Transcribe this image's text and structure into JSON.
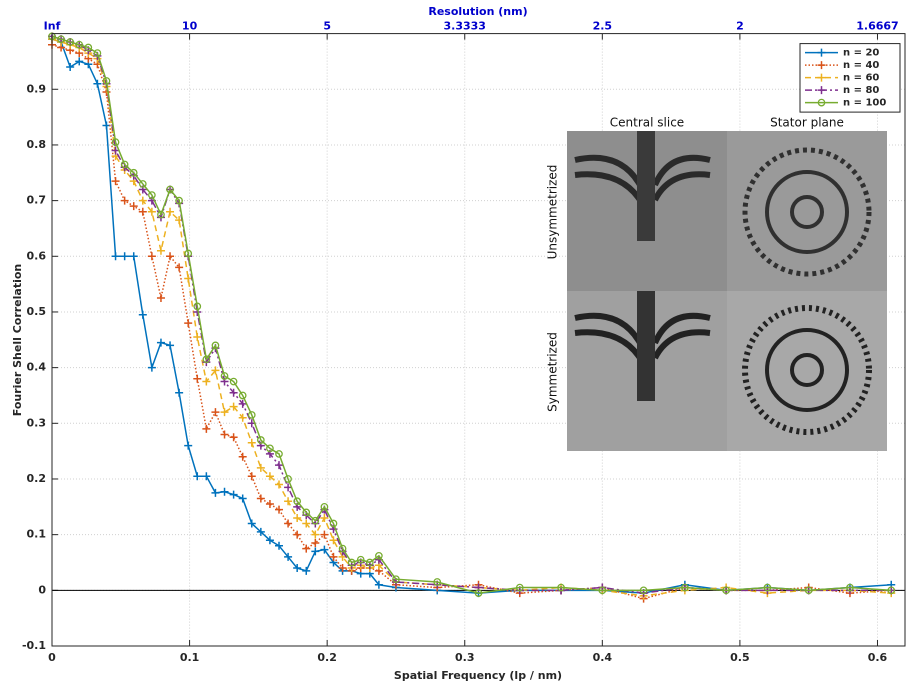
{
  "chart_data": {
    "type": "line",
    "xlabel": "Spatial Frequency (lp / nm)",
    "ylabel": "Fourier Shell Correlation",
    "x2label": "Resolution (nm)",
    "xlim": [
      0,
      0.62
    ],
    "ylim": [
      -0.1,
      1
    ],
    "xticks": [
      0,
      0.1,
      0.2,
      0.3,
      0.4,
      0.5,
      0.6
    ],
    "yticks": [
      -0.1,
      0,
      0.1,
      0.2,
      0.3,
      0.4,
      0.5,
      0.6,
      0.7,
      0.8,
      0.9
    ],
    "x2ticks": [
      {
        "value": 0,
        "label": "Inf"
      },
      {
        "value": 0.1,
        "label": "10"
      },
      {
        "value": 0.2,
        "label": "5"
      },
      {
        "value": 0.3,
        "label": "3.3333"
      },
      {
        "value": 0.4,
        "label": "2.5"
      },
      {
        "value": 0.5,
        "label": "2"
      },
      {
        "value": 0.6,
        "label": "1.6667"
      }
    ],
    "grid": true,
    "legend": "upper right",
    "x": [
      0,
      0.0066,
      0.0132,
      0.0198,
      0.0264,
      0.033,
      0.0396,
      0.0462,
      0.0528,
      0.0594,
      0.066,
      0.0726,
      0.0792,
      0.0858,
      0.0924,
      0.099,
      0.1056,
      0.1122,
      0.1188,
      0.1254,
      0.132,
      0.1386,
      0.1452,
      0.1518,
      0.1584,
      0.165,
      0.1716,
      0.1782,
      0.1848,
      0.1914,
      0.198,
      0.2046,
      0.2112,
      0.2178,
      0.2244,
      0.231,
      0.2376,
      0.25,
      0.28,
      0.31,
      0.34,
      0.37,
      0.4,
      0.43,
      0.46,
      0.49,
      0.52,
      0.55,
      0.58,
      0.61
    ],
    "series": [
      {
        "name": "n = 20",
        "color": "#0072BD",
        "linestyle": "solid",
        "marker": "plus",
        "values": [
          0.99,
          0.985,
          0.94,
          0.95,
          0.945,
          0.91,
          0.835,
          0.6,
          0.6,
          0.6,
          0.495,
          0.4,
          0.445,
          0.44,
          0.355,
          0.26,
          0.205,
          0.205,
          0.175,
          0.177,
          0.172,
          0.165,
          0.12,
          0.105,
          0.09,
          0.08,
          0.06,
          0.04,
          0.035,
          0.07,
          0.073,
          0.05,
          0.035,
          0.035,
          0.03,
          0.03,
          0.01,
          0.005,
          0,
          -0.005,
          0,
          0,
          0,
          -0.005,
          0.01,
          0,
          0.005,
          0,
          0.005,
          0.01
        ]
      },
      {
        "name": "n = 40",
        "color": "#D95319",
        "linestyle": "dotted",
        "marker": "plus",
        "values": [
          0.98,
          0.975,
          0.97,
          0.965,
          0.955,
          0.945,
          0.895,
          0.735,
          0.7,
          0.69,
          0.68,
          0.6,
          0.525,
          0.6,
          0.58,
          0.48,
          0.38,
          0.29,
          0.32,
          0.28,
          0.275,
          0.24,
          0.205,
          0.165,
          0.155,
          0.145,
          0.12,
          0.1,
          0.075,
          0.085,
          0.1,
          0.06,
          0.04,
          0.035,
          0.04,
          0.04,
          0.035,
          0.01,
          0.005,
          0.01,
          -0.005,
          0,
          0.005,
          -0.015,
          0.005,
          0,
          0,
          0.005,
          -0.005,
          0
        ]
      },
      {
        "name": "n = 60",
        "color": "#EDB120",
        "linestyle": "dashed",
        "marker": "plus",
        "values": [
          0.99,
          0.985,
          0.98,
          0.975,
          0.965,
          0.955,
          0.905,
          0.78,
          0.755,
          0.735,
          0.7,
          0.68,
          0.61,
          0.68,
          0.665,
          0.56,
          0.455,
          0.375,
          0.395,
          0.32,
          0.33,
          0.31,
          0.265,
          0.22,
          0.205,
          0.19,
          0.16,
          0.13,
          0.12,
          0.1,
          0.13,
          0.09,
          0.06,
          0.04,
          0.045,
          0.04,
          0.045,
          0.015,
          0.01,
          0.005,
          0,
          0.005,
          0,
          -0.01,
          0,
          0.005,
          -0.005,
          0,
          0,
          -0.005
        ]
      },
      {
        "name": "n = 80",
        "color": "#7E2F8E",
        "linestyle": "dashdot",
        "marker": "plus",
        "values": [
          0.995,
          0.99,
          0.985,
          0.98,
          0.97,
          0.96,
          0.91,
          0.79,
          0.76,
          0.745,
          0.72,
          0.7,
          0.67,
          0.72,
          0.695,
          0.6,
          0.5,
          0.41,
          0.435,
          0.375,
          0.355,
          0.335,
          0.3,
          0.26,
          0.245,
          0.225,
          0.185,
          0.15,
          0.135,
          0.12,
          0.145,
          0.11,
          0.07,
          0.045,
          0.05,
          0.045,
          0.055,
          0.015,
          0.01,
          0.005,
          0,
          0,
          0.005,
          -0.005,
          0.005,
          0,
          0,
          0,
          0,
          0
        ]
      },
      {
        "name": "n = 100",
        "color": "#77AC30",
        "linestyle": "solid",
        "marker": "circle",
        "values": [
          0.995,
          0.99,
          0.985,
          0.98,
          0.975,
          0.965,
          0.915,
          0.805,
          0.765,
          0.75,
          0.73,
          0.71,
          0.675,
          0.72,
          0.7,
          0.605,
          0.51,
          0.415,
          0.44,
          0.385,
          0.375,
          0.35,
          0.315,
          0.27,
          0.255,
          0.245,
          0.2,
          0.16,
          0.14,
          0.125,
          0.15,
          0.12,
          0.075,
          0.05,
          0.055,
          0.05,
          0.062,
          0.02,
          0.015,
          -0.005,
          0.005,
          0.005,
          0,
          0,
          0.005,
          0,
          0.005,
          0,
          0.005,
          0
        ]
      }
    ]
  },
  "inset": {
    "column_titles": [
      "Central slice",
      "Stator plane"
    ],
    "row_titles": [
      "Unsymmetrized",
      "Symmetrized"
    ]
  }
}
